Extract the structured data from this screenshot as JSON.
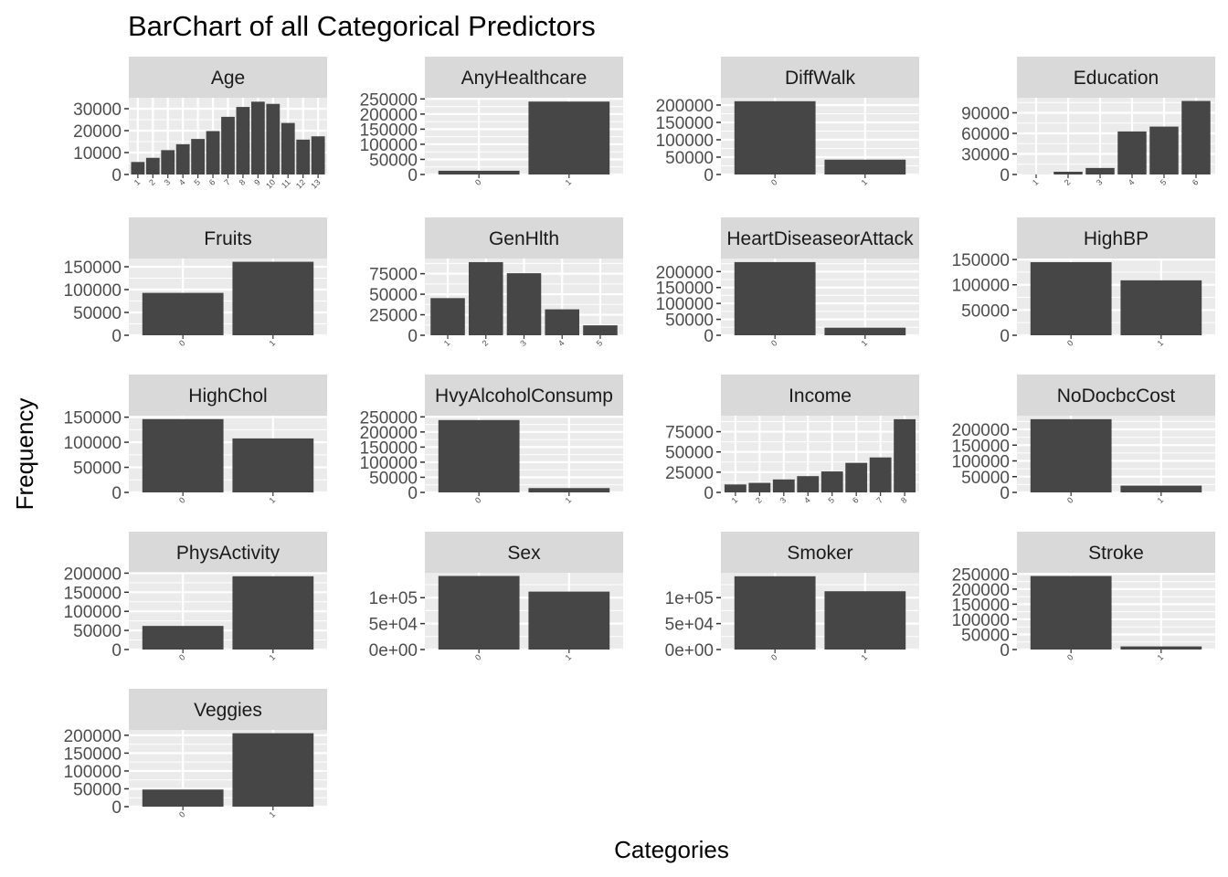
{
  "chart_data": {
    "type": "bar",
    "title": "BarChart of all Categorical Predictors",
    "xlabel": "Categories",
    "ylabel": "Frequency",
    "grid": true,
    "colors": {
      "bar": "#464646",
      "panel_background": "#ebebeb",
      "strip_background": "#d9d9d9",
      "grid": "#ffffff"
    },
    "panels": [
      {
        "name": "Age",
        "categories": [
          "1",
          "2",
          "3",
          "4",
          "5",
          "6",
          "7",
          "8",
          "9",
          "10",
          "11",
          "12",
          "13"
        ],
        "values": [
          5700,
          7600,
          11100,
          13800,
          16200,
          19800,
          26300,
          30800,
          33200,
          32200,
          23500,
          15900,
          17400
        ],
        "ylim": [
          0,
          35000
        ],
        "yticks": [
          "0",
          "10000",
          "20000",
          "30000"
        ],
        "ytick_values": [
          0,
          10000,
          20000,
          30000
        ]
      },
      {
        "name": "AnyHealthcare",
        "categories": [
          "0",
          "1"
        ],
        "values": [
          12400,
          241300
        ],
        "ylim": [
          0,
          254000
        ],
        "yticks": [
          "0",
          "50000",
          "100000",
          "150000",
          "200000",
          "250000"
        ],
        "ytick_values": [
          0,
          50000,
          100000,
          150000,
          200000,
          250000
        ]
      },
      {
        "name": "DiffWalk",
        "categories": [
          "0",
          "1"
        ],
        "values": [
          211000,
          42700
        ],
        "ylim": [
          0,
          221000
        ],
        "yticks": [
          "0",
          "50000",
          "100000",
          "150000",
          "200000"
        ],
        "ytick_values": [
          0,
          50000,
          100000,
          150000,
          200000
        ]
      },
      {
        "name": "Education",
        "categories": [
          "1",
          "2",
          "3",
          "4",
          "5",
          "6"
        ],
        "values": [
          170,
          4000,
          9500,
          62800,
          69900,
          107300
        ],
        "ylim": [
          0,
          112000
        ],
        "yticks": [
          "0",
          "30000",
          "60000",
          "90000"
        ],
        "ytick_values": [
          0,
          30000,
          60000,
          90000
        ]
      },
      {
        "name": "Fruits",
        "categories": [
          "0",
          "1"
        ],
        "values": [
          92800,
          160900
        ],
        "ylim": [
          0,
          168000
        ],
        "yticks": [
          "0",
          "50000",
          "100000",
          "150000"
        ],
        "ytick_values": [
          0,
          50000,
          100000,
          150000
        ]
      },
      {
        "name": "GenHlth",
        "categories": [
          "1",
          "2",
          "3",
          "4",
          "5"
        ],
        "values": [
          45300,
          89100,
          75600,
          31600,
          12100
        ],
        "ylim": [
          0,
          93500
        ],
        "yticks": [
          "0",
          "25000",
          "50000",
          "75000"
        ],
        "ytick_values": [
          0,
          25000,
          50000,
          75000
        ]
      },
      {
        "name": "HeartDiseaseorAttack",
        "categories": [
          "0",
          "1"
        ],
        "values": [
          229800,
          23900
        ],
        "ylim": [
          0,
          241000
        ],
        "yticks": [
          "0",
          "50000",
          "100000",
          "150000",
          "200000"
        ],
        "ytick_values": [
          0,
          50000,
          100000,
          150000,
          200000
        ]
      },
      {
        "name": "HighBP",
        "categories": [
          "0",
          "1"
        ],
        "values": [
          144800,
          108800
        ],
        "ylim": [
          0,
          152000
        ],
        "yticks": [
          "0",
          "50000",
          "100000",
          "150000"
        ],
        "ytick_values": [
          0,
          50000,
          100000,
          150000
        ]
      },
      {
        "name": "HighChol",
        "categories": [
          "0",
          "1"
        ],
        "values": [
          146100,
          107600
        ],
        "ylim": [
          0,
          153000
        ],
        "yticks": [
          "0",
          "50000",
          "100000",
          "150000"
        ],
        "ytick_values": [
          0,
          50000,
          100000,
          150000
        ]
      },
      {
        "name": "HvyAlcoholConsump",
        "categories": [
          "0",
          "1"
        ],
        "values": [
          239400,
          14300
        ],
        "ylim": [
          0,
          254000
        ],
        "yticks": [
          "0",
          "50000",
          "100000",
          "150000",
          "200000",
          "250000"
        ],
        "ytick_values": [
          0,
          50000,
          100000,
          150000,
          200000,
          250000
        ]
      },
      {
        "name": "Income",
        "categories": [
          "1",
          "2",
          "3",
          "4",
          "5",
          "6",
          "7",
          "8"
        ],
        "values": [
          9800,
          11800,
          16000,
          20100,
          25900,
          36500,
          43200,
          90400
        ],
        "ylim": [
          0,
          94800
        ],
        "yticks": [
          "0",
          "25000",
          "50000",
          "75000"
        ],
        "ytick_values": [
          0,
          25000,
          50000,
          75000
        ]
      },
      {
        "name": "NoDocbcCost",
        "categories": [
          "0",
          "1"
        ],
        "values": [
          232300,
          21400
        ],
        "ylim": [
          0,
          243500
        ],
        "yticks": [
          "0",
          "50000",
          "100000",
          "150000",
          "200000"
        ],
        "ytick_values": [
          0,
          50000,
          100000,
          150000,
          200000
        ]
      },
      {
        "name": "PhysActivity",
        "categories": [
          "0",
          "1"
        ],
        "values": [
          61800,
          191900
        ],
        "ylim": [
          0,
          201000
        ],
        "yticks": [
          "0",
          "50000",
          "100000",
          "150000",
          "200000"
        ],
        "ytick_values": [
          0,
          50000,
          100000,
          150000,
          200000
        ]
      },
      {
        "name": "Sex",
        "categories": [
          "0",
          "1"
        ],
        "values": [
          141900,
          111700
        ],
        "ylim": [
          0,
          148000
        ],
        "yticks": [
          "0e+00",
          "5e+04",
          "1e+05"
        ],
        "ytick_values": [
          0,
          50000,
          100000
        ]
      },
      {
        "name": "Smoker",
        "categories": [
          "0",
          "1"
        ],
        "values": [
          141300,
          112400
        ],
        "ylim": [
          0,
          148000
        ],
        "yticks": [
          "0e+00",
          "5e+04",
          "1e+05"
        ],
        "ytick_values": [
          0,
          50000,
          100000
        ]
      },
      {
        "name": "Stroke",
        "categories": [
          "0",
          "1"
        ],
        "values": [
          243400,
          10300
        ],
        "ylim": [
          0,
          254000
        ],
        "yticks": [
          "0",
          "50000",
          "100000",
          "150000",
          "200000",
          "250000"
        ],
        "ytick_values": [
          0,
          50000,
          100000,
          150000,
          200000,
          250000
        ]
      },
      {
        "name": "Veggies",
        "categories": [
          "0",
          "1"
        ],
        "values": [
          48000,
          205800
        ],
        "ylim": [
          0,
          215000
        ],
        "yticks": [
          "0",
          "50000",
          "100000",
          "150000",
          "200000"
        ],
        "ytick_values": [
          0,
          50000,
          100000,
          150000,
          200000
        ]
      }
    ]
  }
}
